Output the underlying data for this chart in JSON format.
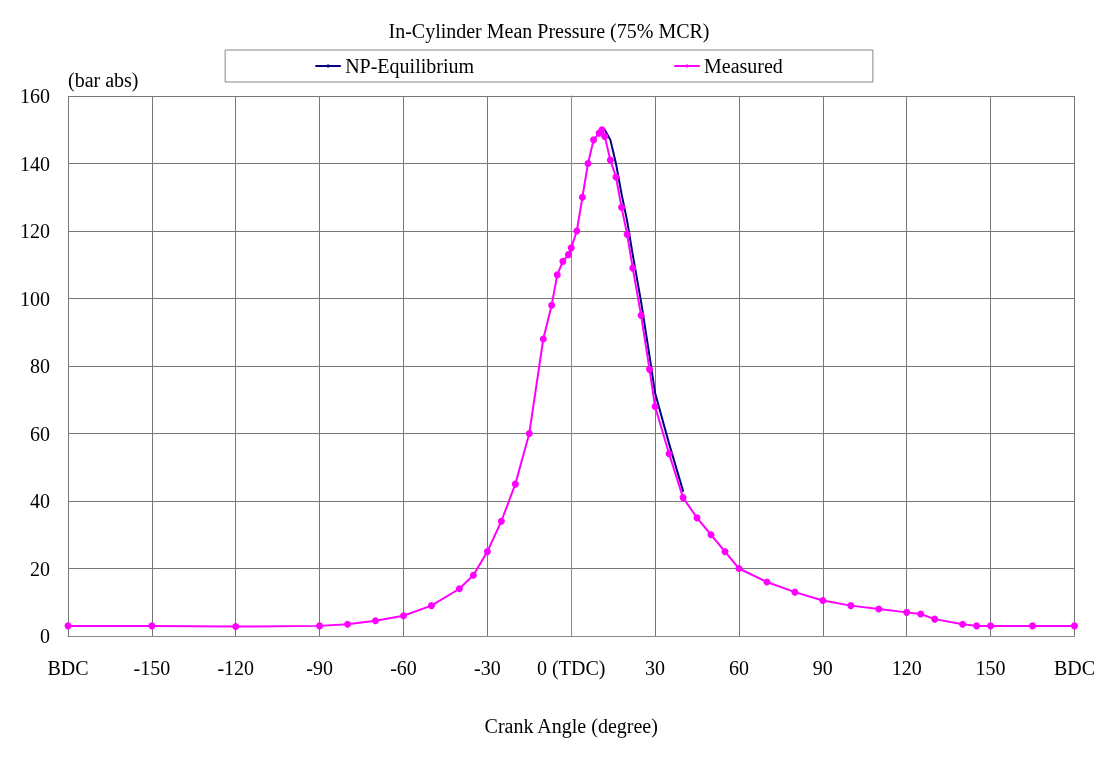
{
  "chart_data": {
    "type": "line",
    "title": "In-Cylinder Mean Pressure (75% MCR)",
    "xlabel": "Crank Angle (degree)",
    "ylabel": "(bar abs)",
    "x": [
      -180,
      -150,
      -120,
      -90,
      -80,
      -70,
      -60,
      -50,
      -40,
      -35,
      -30,
      -25,
      -20,
      -15,
      -10,
      -7,
      -5,
      -3,
      -1,
      0,
      2,
      4,
      6,
      8,
      10,
      11,
      12,
      14,
      16,
      18,
      20,
      22,
      25,
      28,
      30,
      35,
      40,
      45,
      50,
      55,
      60,
      70,
      80,
      90,
      100,
      110,
      120,
      125,
      130,
      140,
      145,
      150,
      165,
      180
    ],
    "series": [
      {
        "name": "NP-Equilibrium",
        "color": "#000080",
        "marker": "none",
        "values": [
          null,
          null,
          null,
          null,
          null,
          null,
          null,
          null,
          null,
          null,
          null,
          null,
          null,
          null,
          null,
          null,
          null,
          null,
          null,
          null,
          null,
          null,
          null,
          null,
          null,
          null,
          150,
          147,
          140,
          131,
          123,
          113,
          99,
          83,
          72,
          57,
          43,
          null,
          null,
          null,
          null,
          null,
          null,
          null,
          null,
          null,
          null,
          null,
          null,
          null,
          null,
          null,
          null,
          null
        ]
      },
      {
        "name": "Measured",
        "color": "#ff00ff",
        "marker": "circle",
        "values": [
          3,
          3,
          2.8,
          3,
          3.5,
          4.5,
          6,
          9,
          14,
          18,
          25,
          34,
          45,
          60,
          88,
          98,
          107,
          111,
          113,
          115,
          120,
          130,
          140,
          147,
          149,
          150,
          148,
          141,
          136,
          127,
          119,
          109,
          95,
          79,
          68,
          54,
          41,
          35,
          30,
          25,
          20,
          16,
          13,
          10.5,
          9,
          8,
          7,
          6.5,
          5,
          3.5,
          3,
          3,
          3,
          3
        ]
      }
    ],
    "xlim": [
      -180,
      180
    ],
    "xticks": [
      {
        "value": -180,
        "label": "BDC"
      },
      -150,
      -120,
      -90,
      -60,
      -30,
      {
        "value": 0,
        "label": "0 (TDC)"
      },
      30,
      60,
      90,
      120,
      150,
      {
        "value": 180,
        "label": "BDC"
      }
    ],
    "ylim": [
      0,
      160
    ],
    "yticks": [
      0,
      20,
      40,
      60,
      80,
      100,
      120,
      140,
      160
    ],
    "grid": true,
    "legend": "top",
    "line_style": "solid"
  }
}
